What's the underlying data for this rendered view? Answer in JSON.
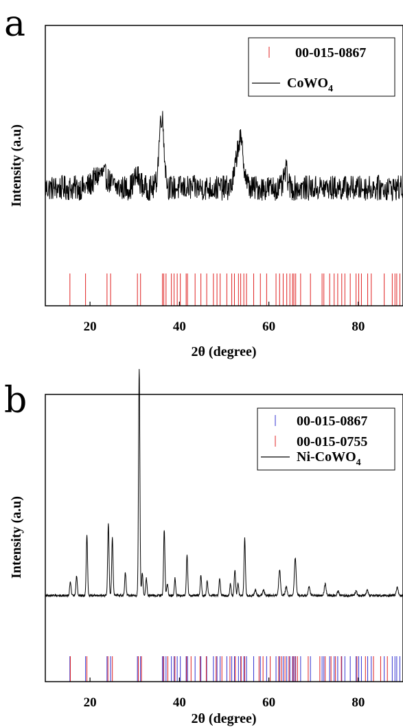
{
  "chart_data": [
    {
      "panel": "a",
      "type": "line",
      "xlabel": "2θ (degree)",
      "ylabel": "Intensity (a.u)",
      "xlim": [
        10,
        90
      ],
      "x_ticks": [
        20,
        40,
        60,
        80
      ],
      "y_ticks_shown": false,
      "grid": false,
      "legend_position": "top-right",
      "legend": [
        {
          "label": "00-015-0867",
          "kind": "reference-ticks",
          "color": "#e02020"
        },
        {
          "label": "CoWO",
          "subscript": "4",
          "kind": "line",
          "color": "#000000"
        }
      ],
      "series": [
        {
          "name": "CoWO4",
          "color": "#000000",
          "baseline": 0.42,
          "noise": 0.045,
          "peaks": [
            {
              "x": 22.5,
              "height": 0.05,
              "width": 1.5
            },
            {
              "x": 30.5,
              "height": 0.04,
              "width": 0.7
            },
            {
              "x": 36.0,
              "height": 0.26,
              "width": 0.55
            },
            {
              "x": 53.5,
              "height": 0.17,
              "width": 0.8
            },
            {
              "x": 63.8,
              "height": 0.06,
              "width": 0.4
            }
          ]
        }
      ],
      "reference_lines": [
        {
          "name": "00-015-0867",
          "color": "#e02020",
          "positions": [
            15.5,
            19.0,
            23.8,
            24.6,
            30.6,
            31.3,
            36.2,
            36.5,
            37.0,
            38.2,
            38.8,
            39.5,
            40.2,
            41.5,
            41.8,
            43.5,
            44.8,
            46.1,
            47.6,
            48.4,
            49.1,
            50.6,
            51.7,
            52.3,
            53.2,
            53.7,
            54.4,
            55.0,
            56.6,
            58.1,
            59.5,
            61.6,
            62.4,
            63.2,
            64.0,
            64.7,
            65.3,
            65.6,
            66.0,
            67.1,
            69.3,
            71.9,
            72.3,
            73.6,
            74.6,
            75.4,
            76.3,
            77.0,
            78.2,
            79.5,
            80.1,
            80.7,
            82.1,
            82.9,
            85.8,
            87.6,
            88.2,
            88.6,
            89.3
          ]
        }
      ]
    },
    {
      "panel": "b",
      "type": "line",
      "xlabel": "2θ (degree)",
      "ylabel": "Intensity (a.u)",
      "xlim": [
        10,
        90
      ],
      "x_ticks": [
        20,
        40,
        60,
        80
      ],
      "y_ticks_shown": false,
      "grid": false,
      "legend_position": "top-right",
      "legend": [
        {
          "label": "00-015-0867",
          "kind": "reference-ticks",
          "color": "#3030d0"
        },
        {
          "label": "00-015-0755",
          "kind": "reference-ticks",
          "color": "#e02020"
        },
        {
          "label": "Ni-CoWO",
          "subscript": "4",
          "kind": "line",
          "color": "#000000"
        }
      ],
      "series": [
        {
          "name": "Ni-CoWO4",
          "color": "#000000",
          "baseline": 0.3,
          "noise": 0.004,
          "peaks": [
            {
              "x": 15.6,
              "height": 0.05,
              "width": 0.15
            },
            {
              "x": 17.0,
              "height": 0.07,
              "width": 0.15
            },
            {
              "x": 19.3,
              "height": 0.21,
              "width": 0.15
            },
            {
              "x": 24.1,
              "height": 0.25,
              "width": 0.15
            },
            {
              "x": 25.0,
              "height": 0.2,
              "width": 0.15
            },
            {
              "x": 27.9,
              "height": 0.08,
              "width": 0.15
            },
            {
              "x": 31.0,
              "height": 0.79,
              "width": 0.15
            },
            {
              "x": 31.7,
              "height": 0.08,
              "width": 0.15
            },
            {
              "x": 32.6,
              "height": 0.06,
              "width": 0.15
            },
            {
              "x": 36.6,
              "height": 0.23,
              "width": 0.15
            },
            {
              "x": 37.3,
              "height": 0.04,
              "width": 0.15
            },
            {
              "x": 39.0,
              "height": 0.06,
              "width": 0.15
            },
            {
              "x": 41.7,
              "height": 0.14,
              "width": 0.15
            },
            {
              "x": 44.8,
              "height": 0.07,
              "width": 0.15
            },
            {
              "x": 46.2,
              "height": 0.05,
              "width": 0.15
            },
            {
              "x": 49.0,
              "height": 0.06,
              "width": 0.15
            },
            {
              "x": 51.4,
              "height": 0.04,
              "width": 0.15
            },
            {
              "x": 52.4,
              "height": 0.09,
              "width": 0.15
            },
            {
              "x": 53.1,
              "height": 0.04,
              "width": 0.15
            },
            {
              "x": 54.6,
              "height": 0.2,
              "width": 0.15
            },
            {
              "x": 57.0,
              "height": 0.02,
              "width": 0.2
            },
            {
              "x": 58.8,
              "height": 0.02,
              "width": 0.2
            },
            {
              "x": 62.4,
              "height": 0.09,
              "width": 0.2
            },
            {
              "x": 63.9,
              "height": 0.03,
              "width": 0.2
            },
            {
              "x": 65.9,
              "height": 0.13,
              "width": 0.2
            },
            {
              "x": 69.0,
              "height": 0.03,
              "width": 0.2
            },
            {
              "x": 72.6,
              "height": 0.04,
              "width": 0.2
            },
            {
              "x": 75.5,
              "height": 0.015,
              "width": 0.2
            },
            {
              "x": 79.5,
              "height": 0.015,
              "width": 0.2
            },
            {
              "x": 82.0,
              "height": 0.02,
              "width": 0.2
            },
            {
              "x": 88.7,
              "height": 0.03,
              "width": 0.2
            }
          ]
        }
      ],
      "reference_lines": [
        {
          "name": "00-015-0867",
          "color": "#3030d0",
          "positions": [
            15.5,
            19.0,
            23.8,
            24.6,
            30.6,
            31.3,
            36.2,
            36.5,
            37.0,
            38.2,
            38.8,
            39.5,
            40.2,
            41.5,
            41.8,
            43.5,
            44.8,
            46.1,
            47.6,
            48.4,
            49.1,
            50.6,
            51.7,
            52.3,
            53.2,
            53.7,
            54.4,
            55.0,
            56.6,
            58.1,
            59.5,
            61.6,
            62.4,
            63.2,
            64.0,
            64.7,
            65.3,
            65.6,
            66.0,
            67.1,
            69.3,
            71.9,
            72.3,
            73.6,
            74.6,
            75.4,
            76.3,
            77.0,
            78.2,
            79.5,
            80.1,
            80.7,
            82.1,
            82.9,
            85.8,
            87.6,
            88.2,
            88.6,
            89.3
          ]
        },
        {
          "name": "00-015-0755",
          "color": "#e02020",
          "positions": [
            15.6,
            19.3,
            24.0,
            25.0,
            30.8,
            31.5,
            36.4,
            37.4,
            39.0,
            41.6,
            42.6,
            44.6,
            46.0,
            48.2,
            49.5,
            51.3,
            52.5,
            53.8,
            54.6,
            57.8,
            58.7,
            60.3,
            62.2,
            62.8,
            63.6,
            64.5,
            65.4,
            65.9,
            66.4,
            68.8,
            71.4,
            72.6,
            73.9,
            74.9,
            76.2,
            79.7,
            81.6,
            83.4,
            85.0,
            86.5
          ]
        }
      ]
    }
  ]
}
